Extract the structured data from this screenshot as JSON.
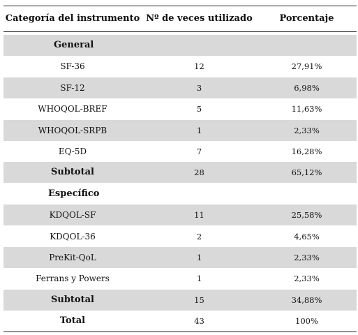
{
  "table": {
    "headers": [
      "Categoría del instrumento",
      "Nº de veces utilizado",
      "Porcentaje"
    ],
    "rows": [
      {
        "kind": "section",
        "name": "General",
        "count": "",
        "pct": ""
      },
      {
        "kind": "item",
        "name": "SF-36",
        "count": "12",
        "pct": "27,91%"
      },
      {
        "kind": "item",
        "name": "SF-12",
        "count": "3",
        "pct": "6,98%"
      },
      {
        "kind": "item",
        "name": "WHOQOL-BREF",
        "count": "5",
        "pct": "11,63%"
      },
      {
        "kind": "item",
        "name": "WHOQOL-SRPB",
        "count": "1",
        "pct": "2,33%"
      },
      {
        "kind": "item",
        "name": "EQ-5D",
        "count": "7",
        "pct": "16,28%"
      },
      {
        "kind": "subtotal",
        "name": "Subtotal",
        "count": "28",
        "pct": "65,12%"
      },
      {
        "kind": "section",
        "name": "Específico",
        "count": "",
        "pct": ""
      },
      {
        "kind": "item",
        "name": "KDQOL-SF",
        "count": "11",
        "pct": "25,58%"
      },
      {
        "kind": "item",
        "name": "KDQOL-36",
        "count": "2",
        "pct": "4,65%"
      },
      {
        "kind": "item",
        "name": "PreKit-QoL",
        "count": "1",
        "pct": "2,33%"
      },
      {
        "kind": "item",
        "name": "Ferrans y Powers",
        "count": "1",
        "pct": "2,33%"
      },
      {
        "kind": "subtotal",
        "name": "Subtotal",
        "count": "15",
        "pct": "34,88%"
      },
      {
        "kind": "total",
        "name": "Total",
        "count": "43",
        "pct": "100%"
      }
    ]
  }
}
